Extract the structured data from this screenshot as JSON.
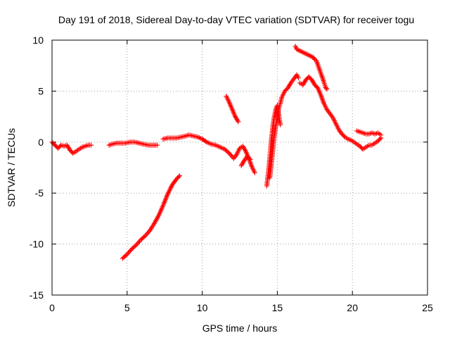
{
  "chart_data": {
    "type": "scatter",
    "title": "Day 191 of 2018, Sidereal Day-to-day VTEC variation (SDTVAR) for receiver togu",
    "xlabel": "GPS time / hours",
    "ylabel": "SDTVAR / TECUs",
    "xlim": [
      0,
      25
    ],
    "ylim": [
      -15,
      10
    ],
    "xticks": [
      0,
      5,
      10,
      15,
      20,
      25
    ],
    "yticks": [
      -15,
      -10,
      -5,
      0,
      5,
      10
    ],
    "xtick_labels": [
      "0",
      "5",
      "10",
      "15",
      "20",
      "25"
    ],
    "ytick_labels": [
      "-15",
      "-10",
      "-5",
      "0",
      "5",
      "10"
    ],
    "grid": true,
    "marker": "+",
    "color": "#ff0000",
    "series": [
      {
        "name": "togu SDTVAR",
        "segments": [
          [
            [
              0.0,
              0.0
            ],
            [
              0.2,
              -0.3
            ],
            [
              0.4,
              -0.6
            ],
            [
              0.6,
              -0.3
            ],
            [
              0.8,
              -0.4
            ],
            [
              1.0,
              -0.3
            ],
            [
              1.2,
              -0.8
            ],
            [
              1.4,
              -1.1
            ],
            [
              1.6,
              -0.9
            ],
            [
              1.8,
              -0.7
            ],
            [
              2.0,
              -0.5
            ],
            [
              2.2,
              -0.4
            ],
            [
              2.4,
              -0.3
            ],
            [
              2.6,
              -0.3
            ]
          ],
          [
            [
              3.8,
              -0.3
            ],
            [
              4.0,
              -0.2
            ],
            [
              4.3,
              -0.1
            ],
            [
              4.6,
              -0.1
            ],
            [
              4.9,
              -0.1
            ],
            [
              5.2,
              0.0
            ],
            [
              5.5,
              0.0
            ],
            [
              5.8,
              -0.1
            ],
            [
              6.1,
              -0.2
            ],
            [
              6.4,
              -0.3
            ],
            [
              6.7,
              -0.3
            ],
            [
              7.0,
              -0.3
            ]
          ],
          [
            [
              7.4,
              0.3
            ],
            [
              7.7,
              0.4
            ],
            [
              8.0,
              0.4
            ],
            [
              8.3,
              0.4
            ],
            [
              8.6,
              0.5
            ],
            [
              8.9,
              0.6
            ],
            [
              9.1,
              0.7
            ],
            [
              9.4,
              0.6
            ],
            [
              9.7,
              0.5
            ],
            [
              10.0,
              0.3
            ],
            [
              10.3,
              0.0
            ],
            [
              10.6,
              -0.2
            ],
            [
              10.9,
              -0.3
            ],
            [
              11.2,
              -0.5
            ],
            [
              11.5,
              -0.7
            ],
            [
              11.8,
              -1.1
            ],
            [
              12.1,
              -1.6
            ],
            [
              12.3,
              -1.2
            ],
            [
              12.5,
              -0.6
            ],
            [
              12.7,
              -0.4
            ],
            [
              12.9,
              -0.9
            ],
            [
              13.1,
              -1.6
            ],
            [
              13.3,
              -2.4
            ],
            [
              13.5,
              -3.0
            ]
          ],
          [
            [
              12.6,
              -2.3
            ],
            [
              12.8,
              -1.8
            ],
            [
              13.0,
              -1.4
            ],
            [
              13.2,
              -1.7
            ]
          ],
          [
            [
              4.7,
              -11.4
            ],
            [
              5.0,
              -11.0
            ],
            [
              5.3,
              -10.5
            ],
            [
              5.6,
              -10.1
            ],
            [
              5.9,
              -9.6
            ],
            [
              6.2,
              -9.2
            ],
            [
              6.5,
              -8.7
            ],
            [
              6.8,
              -8.0
            ],
            [
              7.1,
              -7.2
            ],
            [
              7.4,
              -6.2
            ],
            [
              7.7,
              -5.1
            ],
            [
              8.0,
              -4.2
            ],
            [
              8.3,
              -3.6
            ],
            [
              8.5,
              -3.3
            ]
          ],
          [
            [
              11.6,
              4.5
            ],
            [
              11.8,
              3.9
            ],
            [
              12.0,
              3.2
            ],
            [
              12.2,
              2.5
            ],
            [
              12.4,
              2.0
            ]
          ],
          [
            [
              14.3,
              -4.3
            ],
            [
              14.4,
              -3.0
            ],
            [
              14.5,
              -1.5
            ],
            [
              14.6,
              0.2
            ],
            [
              14.7,
              1.5
            ],
            [
              14.8,
              2.5
            ],
            [
              14.9,
              3.2
            ],
            [
              15.0,
              3.6
            ],
            [
              15.1,
              2.6
            ],
            [
              15.2,
              1.7
            ]
          ],
          [
            [
              14.5,
              -3.5
            ],
            [
              14.6,
              -2.2
            ],
            [
              14.7,
              -0.8
            ],
            [
              14.8,
              0.6
            ],
            [
              14.9,
              1.6
            ],
            [
              15.0,
              2.4
            ],
            [
              15.1,
              3.3
            ],
            [
              15.2,
              3.8
            ],
            [
              15.3,
              4.4
            ],
            [
              15.5,
              5.0
            ],
            [
              15.7,
              5.3
            ],
            [
              15.9,
              5.8
            ],
            [
              16.1,
              6.2
            ],
            [
              16.3,
              6.6
            ],
            [
              16.4,
              6.3
            ]
          ],
          [
            [
              16.5,
              5.8
            ],
            [
              16.7,
              5.6
            ],
            [
              16.9,
              6.1
            ],
            [
              17.1,
              6.4
            ],
            [
              17.3,
              6.1
            ],
            [
              17.5,
              5.6
            ],
            [
              17.7,
              5.3
            ],
            [
              17.9,
              4.6
            ],
            [
              18.1,
              3.8
            ],
            [
              18.3,
              3.2
            ],
            [
              18.5,
              2.8
            ],
            [
              18.7,
              2.4
            ],
            [
              18.9,
              1.8
            ],
            [
              19.1,
              1.2
            ],
            [
              19.3,
              0.8
            ],
            [
              19.5,
              0.5
            ],
            [
              19.7,
              0.3
            ],
            [
              19.9,
              0.2
            ],
            [
              20.1,
              0.0
            ],
            [
              20.3,
              -0.2
            ],
            [
              20.5,
              -0.4
            ],
            [
              20.7,
              -0.7
            ],
            [
              20.9,
              -0.5
            ],
            [
              21.1,
              -0.3
            ],
            [
              21.3,
              -0.3
            ],
            [
              21.5,
              -0.1
            ],
            [
              21.7,
              0.1
            ],
            [
              21.9,
              0.4
            ]
          ],
          [
            [
              20.3,
              1.1
            ],
            [
              20.5,
              1.0
            ],
            [
              20.7,
              0.9
            ],
            [
              20.9,
              0.8
            ],
            [
              21.1,
              0.8
            ],
            [
              21.3,
              0.9
            ],
            [
              21.5,
              0.8
            ],
            [
              21.7,
              0.9
            ],
            [
              21.9,
              0.7
            ]
          ],
          [
            [
              16.2,
              9.4
            ],
            [
              16.3,
              9.1
            ],
            [
              17.4,
              8.3
            ],
            [
              17.5,
              8.1
            ],
            [
              17.6,
              8.0
            ],
            [
              18.1,
              5.9
            ],
            [
              18.2,
              5.4
            ],
            [
              18.3,
              5.2
            ]
          ]
        ]
      }
    ]
  }
}
